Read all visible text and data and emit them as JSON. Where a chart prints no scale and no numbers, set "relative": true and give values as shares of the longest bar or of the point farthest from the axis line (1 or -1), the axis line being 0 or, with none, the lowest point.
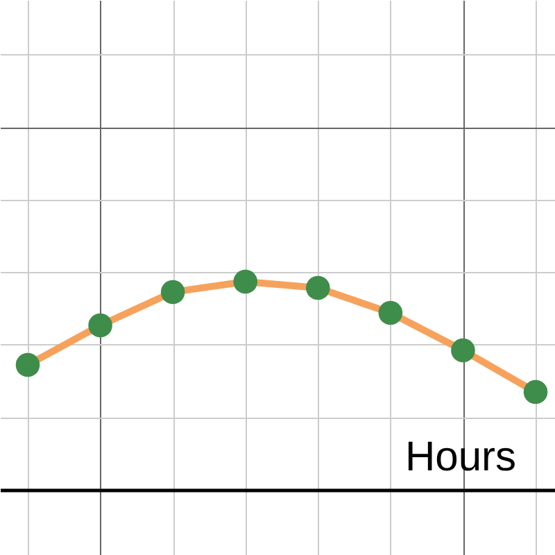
{
  "chart_data": {
    "type": "line",
    "xlabel": "Hours",
    "relative": true,
    "grid": true,
    "categories": [
      null,
      null,
      null,
      null,
      null,
      null,
      null,
      null
    ],
    "series": [
      {
        "color": "#f6a25c",
        "marker": "circle",
        "colors": [
          "#3f8d4a",
          "#3f8d4a",
          "#3f8d4a",
          "#3f8d4a",
          "#3f8d4a",
          "#3f8d4a",
          "#3f8d4a",
          "#3f8d4a"
        ],
        "values": [
          0.6,
          0.79,
          0.95,
          1.0,
          0.97,
          0.85,
          0.67,
          0.47
        ]
      }
    ]
  }
}
